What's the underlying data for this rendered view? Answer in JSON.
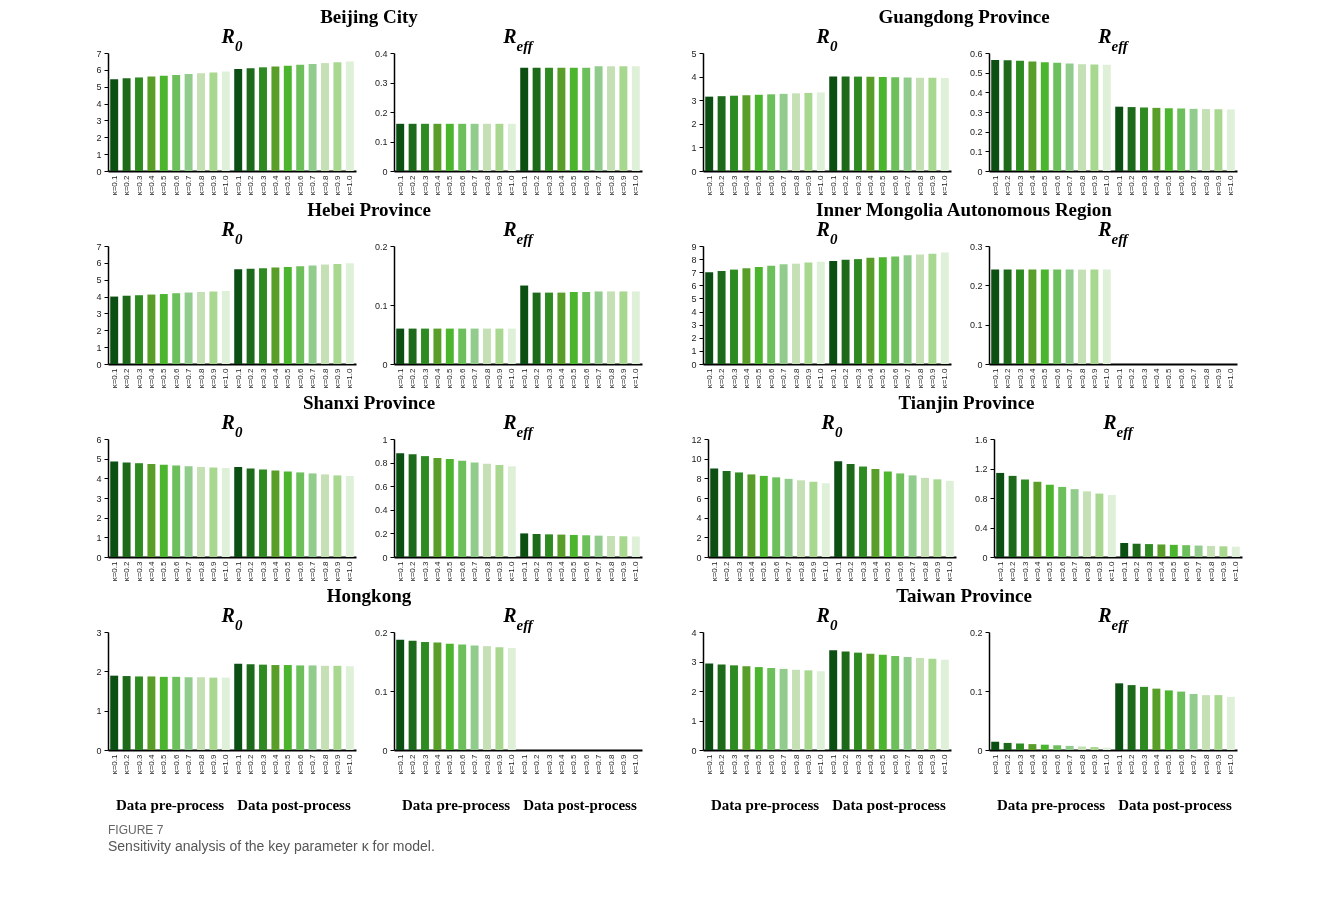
{
  "chart_data": [
    {
      "type": "bar",
      "title": "Beijing City",
      "subtitle": "R$_{0}$",
      "categories": [
        "κ=0.1",
        "κ=0.2",
        "κ=0.3",
        "κ=0.4",
        "κ=0.5",
        "κ=0.6",
        "κ=0.7",
        "κ=0.8",
        "κ=0.9",
        "κ=1.0",
        "κ=0.1",
        "κ=0.2",
        "κ=0.3",
        "κ=0.4",
        "κ=0.5",
        "κ=0.6",
        "κ=0.7",
        "κ=0.8",
        "κ=0.9",
        "κ=1.0"
      ],
      "values": [
        5.45,
        5.5,
        5.55,
        5.6,
        5.65,
        5.7,
        5.75,
        5.8,
        5.85,
        5.9,
        6.05,
        6.1,
        6.15,
        6.2,
        6.25,
        6.3,
        6.35,
        6.4,
        6.45,
        6.5
      ],
      "colors": [
        "#0b4f13",
        "#1d6b1a",
        "#2e8b22",
        "#5a9e2a",
        "#4cb52e",
        "#6cbf5a",
        "#92cc8c",
        "#c4e0b4",
        "#a8d890",
        "#dff0d8",
        "#0b4f13",
        "#1d6b1a",
        "#2e8b22",
        "#5a9e2a",
        "#4cb52e",
        "#6cbf5a",
        "#92cc8c",
        "#c4e0b4",
        "#a8d890",
        "#dff0d8"
      ],
      "ylim": [
        0,
        7
      ],
      "yticks": [
        0,
        1,
        2,
        3,
        4,
        5,
        6,
        7
      ]
    },
    {
      "type": "bar",
      "subtitle": "R$_{eff}$",
      "categories": [
        "κ=0.1",
        "κ=0.2",
        "κ=0.3",
        "κ=0.4",
        "κ=0.5",
        "κ=0.6",
        "κ=0.7",
        "κ=0.8",
        "κ=0.9",
        "κ=1.0",
        "κ=0.1",
        "κ=0.2",
        "κ=0.3",
        "κ=0.4",
        "κ=0.5",
        "κ=0.6",
        "κ=0.7",
        "κ=0.8",
        "κ=0.9",
        "κ=1.0"
      ],
      "values": [
        0.16,
        0.16,
        0.16,
        0.16,
        0.16,
        0.16,
        0.16,
        0.16,
        0.16,
        0.16,
        0.35,
        0.35,
        0.35,
        0.35,
        0.35,
        0.35,
        0.355,
        0.355,
        0.355,
        0.355
      ],
      "colors": [
        "#0b4f13",
        "#1d6b1a",
        "#2e8b22",
        "#5a9e2a",
        "#4cb52e",
        "#6cbf5a",
        "#92cc8c",
        "#c4e0b4",
        "#a8d890",
        "#dff0d8",
        "#0b4f13",
        "#1d6b1a",
        "#2e8b22",
        "#5a9e2a",
        "#4cb52e",
        "#6cbf5a",
        "#92cc8c",
        "#c4e0b4",
        "#a8d890",
        "#dff0d8"
      ],
      "ylim": [
        0,
        0.4
      ],
      "yticks": [
        0,
        0.1,
        0.2,
        0.3,
        0.4
      ]
    },
    {
      "type": "bar",
      "title": "Guangdong Province",
      "subtitle": "R$_{0}$",
      "categories": [
        "κ=0.1",
        "κ=0.2",
        "κ=0.3",
        "κ=0.4",
        "κ=0.5",
        "κ=0.6",
        "κ=0.7",
        "κ=0.8",
        "κ=0.9",
        "κ=1.0",
        "κ=0.1",
        "κ=0.2",
        "κ=0.3",
        "κ=0.4",
        "κ=0.5",
        "κ=0.6",
        "κ=0.7",
        "κ=0.8",
        "κ=0.9",
        "κ=1.0"
      ],
      "values": [
        3.15,
        3.17,
        3.19,
        3.21,
        3.23,
        3.25,
        3.27,
        3.29,
        3.31,
        3.33,
        4.0,
        4.0,
        4.0,
        3.99,
        3.98,
        3.97,
        3.96,
        3.95,
        3.95,
        3.94
      ],
      "colors": [
        "#0b4f13",
        "#1d6b1a",
        "#2e8b22",
        "#5a9e2a",
        "#4cb52e",
        "#6cbf5a",
        "#92cc8c",
        "#c4e0b4",
        "#a8d890",
        "#dff0d8",
        "#0b4f13",
        "#1d6b1a",
        "#2e8b22",
        "#5a9e2a",
        "#4cb52e",
        "#6cbf5a",
        "#92cc8c",
        "#c4e0b4",
        "#a8d890",
        "#dff0d8"
      ],
      "ylim": [
        0,
        5
      ],
      "yticks": [
        0,
        1,
        2,
        3,
        4,
        5
      ]
    },
    {
      "type": "bar",
      "subtitle": "R$_{eff}$",
      "categories": [
        "κ=0.1",
        "κ=0.2",
        "κ=0.3",
        "κ=0.4",
        "κ=0.5",
        "κ=0.6",
        "κ=0.7",
        "κ=0.8",
        "κ=0.9",
        "κ=1.0",
        "κ=0.1",
        "κ=0.2",
        "κ=0.3",
        "κ=0.4",
        "κ=0.5",
        "κ=0.6",
        "κ=0.7",
        "κ=0.8",
        "κ=0.9",
        "κ=1.0"
      ],
      "values": [
        0.565,
        0.563,
        0.56,
        0.557,
        0.553,
        0.55,
        0.547,
        0.543,
        0.542,
        0.54,
        0.327,
        0.325,
        0.323,
        0.321,
        0.319,
        0.318,
        0.316,
        0.315,
        0.314,
        0.313
      ],
      "colors": [
        "#0b4f13",
        "#1d6b1a",
        "#2e8b22",
        "#5a9e2a",
        "#4cb52e",
        "#6cbf5a",
        "#92cc8c",
        "#c4e0b4",
        "#a8d890",
        "#dff0d8",
        "#0b4f13",
        "#1d6b1a",
        "#2e8b22",
        "#5a9e2a",
        "#4cb52e",
        "#6cbf5a",
        "#92cc8c",
        "#c4e0b4",
        "#a8d890",
        "#dff0d8"
      ],
      "ylim": [
        0,
        0.6
      ],
      "yticks": [
        0,
        0.1,
        0.2,
        0.3,
        0.4,
        0.5,
        0.6
      ]
    },
    {
      "type": "bar",
      "title": "Hebei Province",
      "subtitle": "R$_{0}$",
      "categories": [
        "κ=0.1",
        "κ=0.2",
        "κ=0.3",
        "κ=0.4",
        "κ=0.5",
        "κ=0.6",
        "κ=0.7",
        "κ=0.8",
        "κ=0.9",
        "κ=1.0",
        "κ=0.1",
        "κ=0.2",
        "κ=0.3",
        "κ=0.4",
        "κ=0.5",
        "κ=0.6",
        "κ=0.7",
        "κ=0.8",
        "κ=0.9",
        "κ=1.0"
      ],
      "values": [
        4.0,
        4.05,
        4.08,
        4.12,
        4.15,
        4.2,
        4.24,
        4.27,
        4.3,
        4.33,
        5.62,
        5.65,
        5.68,
        5.72,
        5.76,
        5.8,
        5.85,
        5.9,
        5.93,
        5.97
      ],
      "colors": [
        "#0b4f13",
        "#1d6b1a",
        "#2e8b22",
        "#5a9e2a",
        "#4cb52e",
        "#6cbf5a",
        "#92cc8c",
        "#c4e0b4",
        "#a8d890",
        "#dff0d8",
        "#0b4f13",
        "#1d6b1a",
        "#2e8b22",
        "#5a9e2a",
        "#4cb52e",
        "#6cbf5a",
        "#92cc8c",
        "#c4e0b4",
        "#a8d890",
        "#dff0d8"
      ],
      "ylim": [
        0,
        7
      ],
      "yticks": [
        0,
        1,
        2,
        3,
        4,
        5,
        6,
        7
      ]
    },
    {
      "type": "bar",
      "subtitle": "R$_{eff}$",
      "categories": [
        "κ=0.1",
        "κ=0.2",
        "κ=0.3",
        "κ=0.4",
        "κ=0.5",
        "κ=0.6",
        "κ=0.7",
        "κ=0.8",
        "κ=0.9",
        "κ=1.0",
        "κ=0.1",
        "κ=0.2",
        "κ=0.3",
        "κ=0.4",
        "κ=0.5",
        "κ=0.6",
        "κ=0.7",
        "κ=0.8",
        "κ=0.9",
        "κ=1.0"
      ],
      "values": [
        0.06,
        0.06,
        0.06,
        0.06,
        0.06,
        0.06,
        0.06,
        0.06,
        0.06,
        0.06,
        0.133,
        0.121,
        0.121,
        0.121,
        0.122,
        0.122,
        0.123,
        0.123,
        0.123,
        0.123
      ],
      "colors": [
        "#0b4f13",
        "#1d6b1a",
        "#2e8b22",
        "#5a9e2a",
        "#4cb52e",
        "#6cbf5a",
        "#92cc8c",
        "#c4e0b4",
        "#a8d890",
        "#dff0d8",
        "#0b4f13",
        "#1d6b1a",
        "#2e8b22",
        "#5a9e2a",
        "#4cb52e",
        "#6cbf5a",
        "#92cc8c",
        "#c4e0b4",
        "#a8d890",
        "#dff0d8"
      ],
      "ylim": [
        0,
        0.2
      ],
      "yticks": [
        0,
        0.1,
        0.2
      ]
    },
    {
      "type": "bar",
      "title": "Inner Mongolia Autonomous Region",
      "subtitle": "R$_{0}$",
      "categories": [
        "κ=0.1",
        "κ=0.2",
        "κ=0.3",
        "κ=0.4",
        "κ=0.5",
        "κ=0.6",
        "κ=0.7",
        "κ=0.8",
        "κ=0.9",
        "κ=1.0",
        "κ=0.1",
        "κ=0.2",
        "κ=0.3",
        "κ=0.4",
        "κ=0.5",
        "κ=0.6",
        "κ=0.7",
        "κ=0.8",
        "κ=0.9",
        "κ=1.0"
      ],
      "values": [
        7.0,
        7.1,
        7.2,
        7.3,
        7.4,
        7.5,
        7.6,
        7.65,
        7.75,
        7.8,
        7.85,
        7.95,
        8.0,
        8.1,
        8.15,
        8.2,
        8.3,
        8.35,
        8.4,
        8.5
      ],
      "colors": [
        "#0b4f13",
        "#1d6b1a",
        "#2e8b22",
        "#5a9e2a",
        "#4cb52e",
        "#6cbf5a",
        "#92cc8c",
        "#c4e0b4",
        "#a8d890",
        "#dff0d8",
        "#0b4f13",
        "#1d6b1a",
        "#2e8b22",
        "#5a9e2a",
        "#4cb52e",
        "#6cbf5a",
        "#92cc8c",
        "#c4e0b4",
        "#a8d890",
        "#dff0d8"
      ],
      "ylim": [
        0,
        9
      ],
      "yticks": [
        0,
        1,
        2,
        3,
        4,
        5,
        6,
        7,
        8,
        9
      ]
    },
    {
      "type": "bar",
      "subtitle": "R$_{eff}$",
      "categories": [
        "κ=0.1",
        "κ=0.2",
        "κ=0.3",
        "κ=0.4",
        "κ=0.5",
        "κ=0.6",
        "κ=0.7",
        "κ=0.8",
        "κ=0.9",
        "κ=1.0",
        "κ=0.1",
        "κ=0.2",
        "κ=0.3",
        "κ=0.4",
        "κ=0.5",
        "κ=0.6",
        "κ=0.7",
        "κ=0.8",
        "κ=0.9",
        "κ=1.0"
      ],
      "values": [
        0.24,
        0.24,
        0.24,
        0.24,
        0.24,
        0.24,
        0.24,
        0.24,
        0.24,
        0.24,
        null,
        null,
        null,
        null,
        null,
        null,
        null,
        null,
        null,
        null
      ],
      "colors": [
        "#0b4f13",
        "#1d6b1a",
        "#2e8b22",
        "#5a9e2a",
        "#4cb52e",
        "#6cbf5a",
        "#92cc8c",
        "#c4e0b4",
        "#a8d890",
        "#dff0d8",
        "#0b4f13",
        "#1d6b1a",
        "#2e8b22",
        "#5a9e2a",
        "#4cb52e",
        "#6cbf5a",
        "#92cc8c",
        "#c4e0b4",
        "#a8d890",
        "#dff0d8"
      ],
      "ylim": [
        0,
        0.3
      ],
      "yticks": [
        0,
        0.1,
        0.2,
        0.3
      ]
    },
    {
      "type": "bar",
      "title": "Shanxi Province",
      "subtitle": "R$_{0}$",
      "categories": [
        "κ=0.1",
        "κ=0.2",
        "κ=0.3",
        "κ=0.4",
        "κ=0.5",
        "κ=0.6",
        "κ=0.7",
        "κ=0.8",
        "κ=0.9",
        "κ=1.0",
        "κ=0.1",
        "κ=0.2",
        "κ=0.3",
        "κ=0.4",
        "κ=0.5",
        "κ=0.6",
        "κ=0.7",
        "κ=0.8",
        "κ=0.9",
        "κ=1.0"
      ],
      "values": [
        4.85,
        4.8,
        4.77,
        4.73,
        4.69,
        4.65,
        4.61,
        4.58,
        4.55,
        4.52,
        4.57,
        4.5,
        4.45,
        4.4,
        4.35,
        4.3,
        4.25,
        4.2,
        4.15,
        4.12
      ],
      "colors": [
        "#0b4f13",
        "#1d6b1a",
        "#2e8b22",
        "#5a9e2a",
        "#4cb52e",
        "#6cbf5a",
        "#92cc8c",
        "#c4e0b4",
        "#a8d890",
        "#dff0d8",
        "#0b4f13",
        "#1d6b1a",
        "#2e8b22",
        "#5a9e2a",
        "#4cb52e",
        "#6cbf5a",
        "#92cc8c",
        "#c4e0b4",
        "#a8d890",
        "#dff0d8"
      ],
      "ylim": [
        0,
        6
      ],
      "yticks": [
        0,
        1,
        2,
        3,
        4,
        5,
        6
      ]
    },
    {
      "type": "bar",
      "subtitle": "R$_{eff}$",
      "categories": [
        "κ=0.1",
        "κ=0.2",
        "κ=0.3",
        "κ=0.4",
        "κ=0.5",
        "κ=0.6",
        "κ=0.7",
        "κ=0.8",
        "κ=0.9",
        "κ=1.0",
        "κ=0.1",
        "κ=0.2",
        "κ=0.3",
        "κ=0.4",
        "κ=0.5",
        "κ=0.6",
        "κ=0.7",
        "κ=0.8",
        "κ=0.9",
        "κ=1.0"
      ],
      "values": [
        0.88,
        0.87,
        0.855,
        0.84,
        0.83,
        0.815,
        0.8,
        0.79,
        0.78,
        0.77,
        0.2,
        0.195,
        0.192,
        0.19,
        0.187,
        0.184,
        0.181,
        0.178,
        0.176,
        0.174
      ],
      "colors": [
        "#0b4f13",
        "#1d6b1a",
        "#2e8b22",
        "#5a9e2a",
        "#4cb52e",
        "#6cbf5a",
        "#92cc8c",
        "#c4e0b4",
        "#a8d890",
        "#dff0d8",
        "#0b4f13",
        "#1d6b1a",
        "#2e8b22",
        "#5a9e2a",
        "#4cb52e",
        "#6cbf5a",
        "#92cc8c",
        "#c4e0b4",
        "#a8d890",
        "#dff0d8"
      ],
      "ylim": [
        0,
        1
      ],
      "yticks": [
        0,
        0.2,
        0.4,
        0.6,
        0.8,
        1
      ]
    },
    {
      "type": "bar",
      "title": "Tianjin Province",
      "subtitle": "R$_{0}$",
      "categories": [
        "κ=0.1",
        "κ=0.2",
        "κ=0.3",
        "κ=0.4",
        "κ=0.5",
        "κ=0.6",
        "κ=0.7",
        "κ=0.8",
        "κ=0.9",
        "κ=1.0",
        "κ=0.1",
        "κ=0.2",
        "κ=0.3",
        "κ=0.4",
        "κ=0.5",
        "κ=0.6",
        "κ=0.7",
        "κ=0.8",
        "κ=0.9",
        "κ=1.0"
      ],
      "values": [
        9.0,
        8.75,
        8.6,
        8.4,
        8.25,
        8.1,
        7.95,
        7.8,
        7.65,
        7.5,
        9.75,
        9.45,
        9.2,
        8.95,
        8.7,
        8.5,
        8.3,
        8.05,
        7.9,
        7.75
      ],
      "colors": [
        "#0b4f13",
        "#1d6b1a",
        "#2e8b22",
        "#5a9e2a",
        "#4cb52e",
        "#6cbf5a",
        "#92cc8c",
        "#c4e0b4",
        "#a8d890",
        "#dff0d8",
        "#0b4f13",
        "#1d6b1a",
        "#2e8b22",
        "#5a9e2a",
        "#4cb52e",
        "#6cbf5a",
        "#92cc8c",
        "#c4e0b4",
        "#a8d890",
        "#dff0d8"
      ],
      "ylim": [
        0,
        12
      ],
      "yticks": [
        0,
        2,
        4,
        6,
        8,
        10,
        12
      ]
    },
    {
      "type": "bar",
      "subtitle": "R$_{eff}$",
      "categories": [
        "κ=0.1",
        "κ=0.2",
        "κ=0.3",
        "κ=0.4",
        "κ=0.5",
        "κ=0.6",
        "κ=0.7",
        "κ=0.8",
        "κ=0.9",
        "κ=1.0",
        "κ=0.1",
        "κ=0.2",
        "κ=0.3",
        "κ=0.4",
        "κ=0.5",
        "κ=0.6",
        "κ=0.7",
        "κ=0.8",
        "κ=0.9",
        "κ=1.0"
      ],
      "values": [
        1.14,
        1.1,
        1.05,
        1.02,
        0.98,
        0.95,
        0.92,
        0.89,
        0.86,
        0.84,
        0.19,
        0.18,
        0.175,
        0.17,
        0.165,
        0.16,
        0.155,
        0.15,
        0.145,
        0.14
      ],
      "colors": [
        "#0b4f13",
        "#1d6b1a",
        "#2e8b22",
        "#5a9e2a",
        "#4cb52e",
        "#6cbf5a",
        "#92cc8c",
        "#c4e0b4",
        "#a8d890",
        "#dff0d8",
        "#0b4f13",
        "#1d6b1a",
        "#2e8b22",
        "#5a9e2a",
        "#4cb52e",
        "#6cbf5a",
        "#92cc8c",
        "#c4e0b4",
        "#a8d890",
        "#dff0d8"
      ],
      "ylim": [
        0,
        1.6
      ],
      "yticks": [
        0,
        0.4,
        0.8,
        1.2,
        1.6
      ]
    },
    {
      "type": "bar",
      "title": "Hongkong",
      "subtitle": "R$_{0}$",
      "categories": [
        "κ=0.1",
        "κ=0.2",
        "κ=0.3",
        "κ=0.4",
        "κ=0.5",
        "κ=0.6",
        "κ=0.7",
        "κ=0.8",
        "κ=0.9",
        "κ=1.0",
        "κ=0.1",
        "κ=0.2",
        "κ=0.3",
        "κ=0.4",
        "κ=0.5",
        "κ=0.6",
        "κ=0.7",
        "κ=0.8",
        "κ=0.9",
        "κ=1.0"
      ],
      "values": [
        1.89,
        1.88,
        1.87,
        1.87,
        1.86,
        1.86,
        1.85,
        1.85,
        1.84,
        1.84,
        2.19,
        2.18,
        2.17,
        2.16,
        2.16,
        2.15,
        2.15,
        2.14,
        2.14,
        2.13
      ],
      "colors": [
        "#0b4f13",
        "#1d6b1a",
        "#2e8b22",
        "#5a9e2a",
        "#4cb52e",
        "#6cbf5a",
        "#92cc8c",
        "#c4e0b4",
        "#a8d890",
        "#dff0d8",
        "#0b4f13",
        "#1d6b1a",
        "#2e8b22",
        "#5a9e2a",
        "#4cb52e",
        "#6cbf5a",
        "#92cc8c",
        "#c4e0b4",
        "#a8d890",
        "#dff0d8"
      ],
      "ylim": [
        0,
        3
      ],
      "yticks": [
        0,
        1,
        2,
        3
      ],
      "annotations": [
        "Data pre-process",
        "Data post-process"
      ]
    },
    {
      "type": "bar",
      "subtitle": "R$_{eff}$",
      "categories": [
        "κ=0.1",
        "κ=0.2",
        "κ=0.3",
        "κ=0.4",
        "κ=0.5",
        "κ=0.6",
        "κ=0.7",
        "κ=0.8",
        "κ=0.9",
        "κ=1.0",
        "κ=0.1",
        "κ=0.2",
        "κ=0.3",
        "κ=0.4",
        "κ=0.5",
        "κ=0.6",
        "κ=0.7",
        "κ=0.8",
        "κ=0.9",
        "κ=1.0"
      ],
      "values": [
        0.187,
        0.185,
        0.183,
        0.182,
        0.18,
        0.179,
        0.177,
        0.176,
        0.174,
        0.173,
        null,
        null,
        null,
        null,
        null,
        null,
        null,
        null,
        null,
        null
      ],
      "colors": [
        "#0b4f13",
        "#1d6b1a",
        "#2e8b22",
        "#5a9e2a",
        "#4cb52e",
        "#6cbf5a",
        "#92cc8c",
        "#c4e0b4",
        "#a8d890",
        "#dff0d8",
        "#0b4f13",
        "#1d6b1a",
        "#2e8b22",
        "#5a9e2a",
        "#4cb52e",
        "#6cbf5a",
        "#92cc8c",
        "#c4e0b4",
        "#a8d890",
        "#dff0d8"
      ],
      "ylim": [
        0,
        0.2
      ],
      "yticks": [
        0,
        0.1,
        0.2
      ],
      "annotations": [
        "Data pre-process",
        "Data post-process"
      ]
    },
    {
      "type": "bar",
      "title": "Taiwan Province",
      "subtitle": "R$_{0}$",
      "categories": [
        "κ=0.1",
        "κ=0.2",
        "κ=0.3",
        "κ=0.4",
        "κ=0.5",
        "κ=0.6",
        "κ=0.7",
        "κ=0.8",
        "κ=0.9",
        "κ=1.0",
        "κ=0.1",
        "κ=0.2",
        "κ=0.3",
        "κ=0.4",
        "κ=0.5",
        "κ=0.6",
        "κ=0.7",
        "κ=0.8",
        "κ=0.9",
        "κ=1.0"
      ],
      "values": [
        2.93,
        2.9,
        2.87,
        2.84,
        2.81,
        2.78,
        2.75,
        2.72,
        2.7,
        2.67,
        3.38,
        3.34,
        3.3,
        3.26,
        3.23,
        3.19,
        3.15,
        3.12,
        3.09,
        3.06
      ],
      "colors": [
        "#0b4f13",
        "#1d6b1a",
        "#2e8b22",
        "#5a9e2a",
        "#4cb52e",
        "#6cbf5a",
        "#92cc8c",
        "#c4e0b4",
        "#a8d890",
        "#dff0d8",
        "#0b4f13",
        "#1d6b1a",
        "#2e8b22",
        "#5a9e2a",
        "#4cb52e",
        "#6cbf5a",
        "#92cc8c",
        "#c4e0b4",
        "#a8d890",
        "#dff0d8"
      ],
      "ylim": [
        0,
        4
      ],
      "yticks": [
        0,
        1,
        2,
        3,
        4
      ],
      "annotations": [
        "Data pre-process",
        "Data post-process"
      ]
    },
    {
      "type": "bar",
      "subtitle": "R$_{eff}$",
      "categories": [
        "κ=0.1",
        "κ=0.2",
        "κ=0.3",
        "κ=0.4",
        "κ=0.5",
        "κ=0.6",
        "κ=0.7",
        "κ=0.8",
        "κ=0.9",
        "κ=1.0",
        "κ=0.1",
        "κ=0.2",
        "κ=0.3",
        "κ=0.4",
        "κ=0.5",
        "κ=0.6",
        "κ=0.7",
        "κ=0.8",
        "κ=0.9",
        "κ=1.0"
      ],
      "values": [
        0.014,
        0.012,
        0.011,
        0.01,
        0.009,
        0.008,
        0.007,
        0.006,
        0.005,
        0.004,
        0.113,
        0.11,
        0.107,
        0.104,
        0.101,
        0.099,
        0.095,
        0.093,
        0.093,
        0.09
      ],
      "colors": [
        "#0b4f13",
        "#1d6b1a",
        "#2e8b22",
        "#5a9e2a",
        "#4cb52e",
        "#6cbf5a",
        "#92cc8c",
        "#c4e0b4",
        "#a8d890",
        "#dff0d8",
        "#0b4f13",
        "#1d6b1a",
        "#2e8b22",
        "#5a9e2a",
        "#4cb52e",
        "#6cbf5a",
        "#92cc8c",
        "#c4e0b4",
        "#a8d890",
        "#dff0d8"
      ],
      "ylim": [
        0,
        0.2
      ],
      "yticks": [
        0,
        0.1,
        0.2
      ],
      "annotations": [
        "Data pre-process",
        "Data post-process",
        "FIGURE 7",
        "Sensitivity analysis of the key parameter κ for model."
      ]
    }
  ]
}
